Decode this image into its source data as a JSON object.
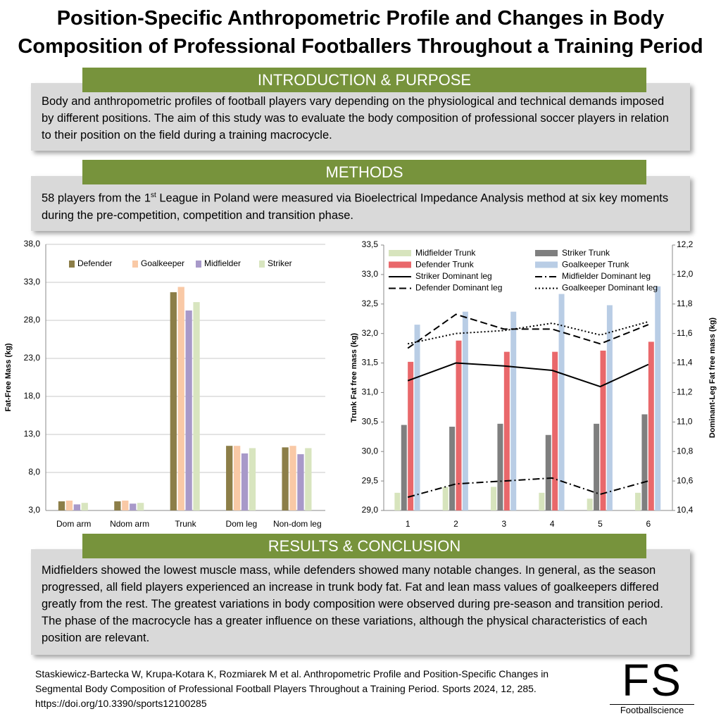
{
  "title": "Position-Specific Anthropometric Profile and Changes in Body Composition of Professional Footballers Throughout a Training Period",
  "sections": [
    {
      "heading": "INTRODUCTION & PURPOSE",
      "body": "Body and anthropometric profiles of football players vary depending on the physiological and technical demands imposed by different positions. The aim of this study was to evaluate the body composition of professional soccer players in relation to their position on the field during a training macrocycle."
    },
    {
      "heading": "METHODS",
      "body_parts": [
        "58 players from the 1",
        "st",
        " League in Poland were measured via Bioelectrical Impedance Analysis method at six key moments during the pre-competition, competition and transition phase."
      ]
    },
    {
      "heading": "RESULTS & CONCLUSION",
      "body": "Midfielders showed the lowest muscle mass, while defenders showed many notable changes. In general, as the season progressed, all field players experienced an increase in trunk body fat. Fat and lean mass values of goalkeepers differed greatly from the rest. The greatest variations in body composition were observed during pre-season and transition period. The phase of the macrocycle has a greater influence on these variations, although the physical characteristics of each position are relevant."
    }
  ],
  "chart_data": [
    {
      "type": "bar",
      "y_label": "Fat-Free Mass (kg)",
      "categories": [
        "Dom arm",
        "Ndom arm",
        "Trunk",
        "Dom leg",
        "Non-dom leg"
      ],
      "series": [
        {
          "name": "Defender",
          "color": "#8c7e48",
          "values": [
            4.2,
            4.2,
            31.7,
            11.5,
            11.3
          ]
        },
        {
          "name": "Goalkeeper",
          "color": "#f9c9a6",
          "values": [
            4.3,
            4.3,
            32.4,
            11.5,
            11.5
          ]
        },
        {
          "name": "Midfielder",
          "color": "#a899c9",
          "values": [
            3.8,
            3.9,
            29.3,
            10.5,
            10.4
          ]
        },
        {
          "name": "Striker",
          "color": "#d8e5bf",
          "values": [
            4.0,
            4.0,
            30.4,
            11.2,
            11.2
          ]
        }
      ],
      "ylim": [
        3,
        38
      ],
      "yticks": [
        {
          "value": 3,
          "label": "3,0"
        },
        {
          "value": 8,
          "label": "8,0"
        },
        {
          "value": 13,
          "label": "13,0"
        },
        {
          "value": 18,
          "label": "18,0"
        },
        {
          "value": 23,
          "label": "23,0"
        },
        {
          "value": 28,
          "label": "28,0"
        },
        {
          "value": 33,
          "label": "33,0"
        },
        {
          "value": 38,
          "label": "38,0"
        }
      ],
      "grid": true,
      "legend": "top"
    },
    {
      "type": "combo",
      "y_label": "Trunk Fat free mass (kg)",
      "y2_label": "Dominant-Leg Fat free mass (kg)",
      "categories": [
        "1",
        "2",
        "3",
        "4",
        "5",
        "6"
      ],
      "series": [
        {
          "name": "Midfielder Trunk",
          "type": "bar",
          "color": "#d7e4bd",
          "values": [
            29.3,
            29.4,
            29.4,
            29.3,
            29.2,
            29.3
          ]
        },
        {
          "name": "Striker Trunk",
          "type": "bar",
          "color": "#7f7f7f",
          "values": [
            30.45,
            30.42,
            30.47,
            30.28,
            30.47,
            30.63
          ]
        },
        {
          "name": "Defender Trunk",
          "type": "bar",
          "color": "#e9686b",
          "values": [
            31.52,
            31.88,
            31.69,
            31.69,
            31.71,
            31.86
          ]
        },
        {
          "name": "Goalkeeper Trunk",
          "type": "bar",
          "color": "#b9cde5",
          "values": [
            32.15,
            32.37,
            32.37,
            32.67,
            32.48,
            32.8
          ]
        },
        {
          "name": "Striker Dominant leg",
          "type": "line",
          "axis": "y2",
          "style": "solid",
          "color": "#000000",
          "values": [
            11.28,
            11.4,
            11.38,
            11.35,
            11.24,
            11.39
          ]
        },
        {
          "name": "Midfielder Dominant leg",
          "type": "line",
          "axis": "y2",
          "style": "dashdot",
          "color": "#000000",
          "values": [
            10.49,
            10.58,
            10.6,
            10.62,
            10.51,
            10.6
          ]
        },
        {
          "name": "Defender Dominant leg",
          "type": "line",
          "axis": "y2",
          "style": "dashed",
          "color": "#000000",
          "values": [
            11.5,
            11.73,
            11.63,
            11.63,
            11.53,
            11.66
          ]
        },
        {
          "name": "Goalkeeper Dominant leg",
          "type": "line",
          "axis": "y2",
          "style": "dotted",
          "color": "#000000",
          "values": [
            11.53,
            11.6,
            11.62,
            11.67,
            11.59,
            11.68
          ]
        }
      ],
      "ylim": [
        29,
        33.5
      ],
      "yticks": [
        {
          "value": 29,
          "label": "29,0"
        },
        {
          "value": 29.5,
          "label": "29,5"
        },
        {
          "value": 30,
          "label": "30,0"
        },
        {
          "value": 30.5,
          "label": "30,5"
        },
        {
          "value": 31,
          "label": "31,0"
        },
        {
          "value": 31.5,
          "label": "31,5"
        },
        {
          "value": 32,
          "label": "32,0"
        },
        {
          "value": 32.5,
          "label": "32,5"
        },
        {
          "value": 33,
          "label": "33,0"
        },
        {
          "value": 33.5,
          "label": "33,5"
        }
      ],
      "y2lim": [
        10.4,
        12.2
      ],
      "y2ticks": [
        {
          "value": 10.4,
          "label": "10,4"
        },
        {
          "value": 10.6,
          "label": "10,6"
        },
        {
          "value": 10.8,
          "label": "10,8"
        },
        {
          "value": 11,
          "label": "11,0"
        },
        {
          "value": 11.2,
          "label": "11,2"
        },
        {
          "value": 11.4,
          "label": "11,4"
        },
        {
          "value": 11.6,
          "label": "11,6"
        },
        {
          "value": 11.8,
          "label": "11,8"
        },
        {
          "value": 12,
          "label": "12,0"
        },
        {
          "value": 12.2,
          "label": "12,2"
        }
      ],
      "grid": false,
      "legend": "top"
    }
  ],
  "citation": "Staskiewicz-Bartecka W, Krupa-Kotara K, Rozmiarek M et al. Anthropometric Profile and Position-Specific Changes in Segmental Body Composition of Professional Football Players Throughout a Training Period. Sports 2024, 12, 285. https://doi.org/10.3390/sports12100285",
  "logo": {
    "mark": "FS",
    "text": "Footballscience"
  }
}
